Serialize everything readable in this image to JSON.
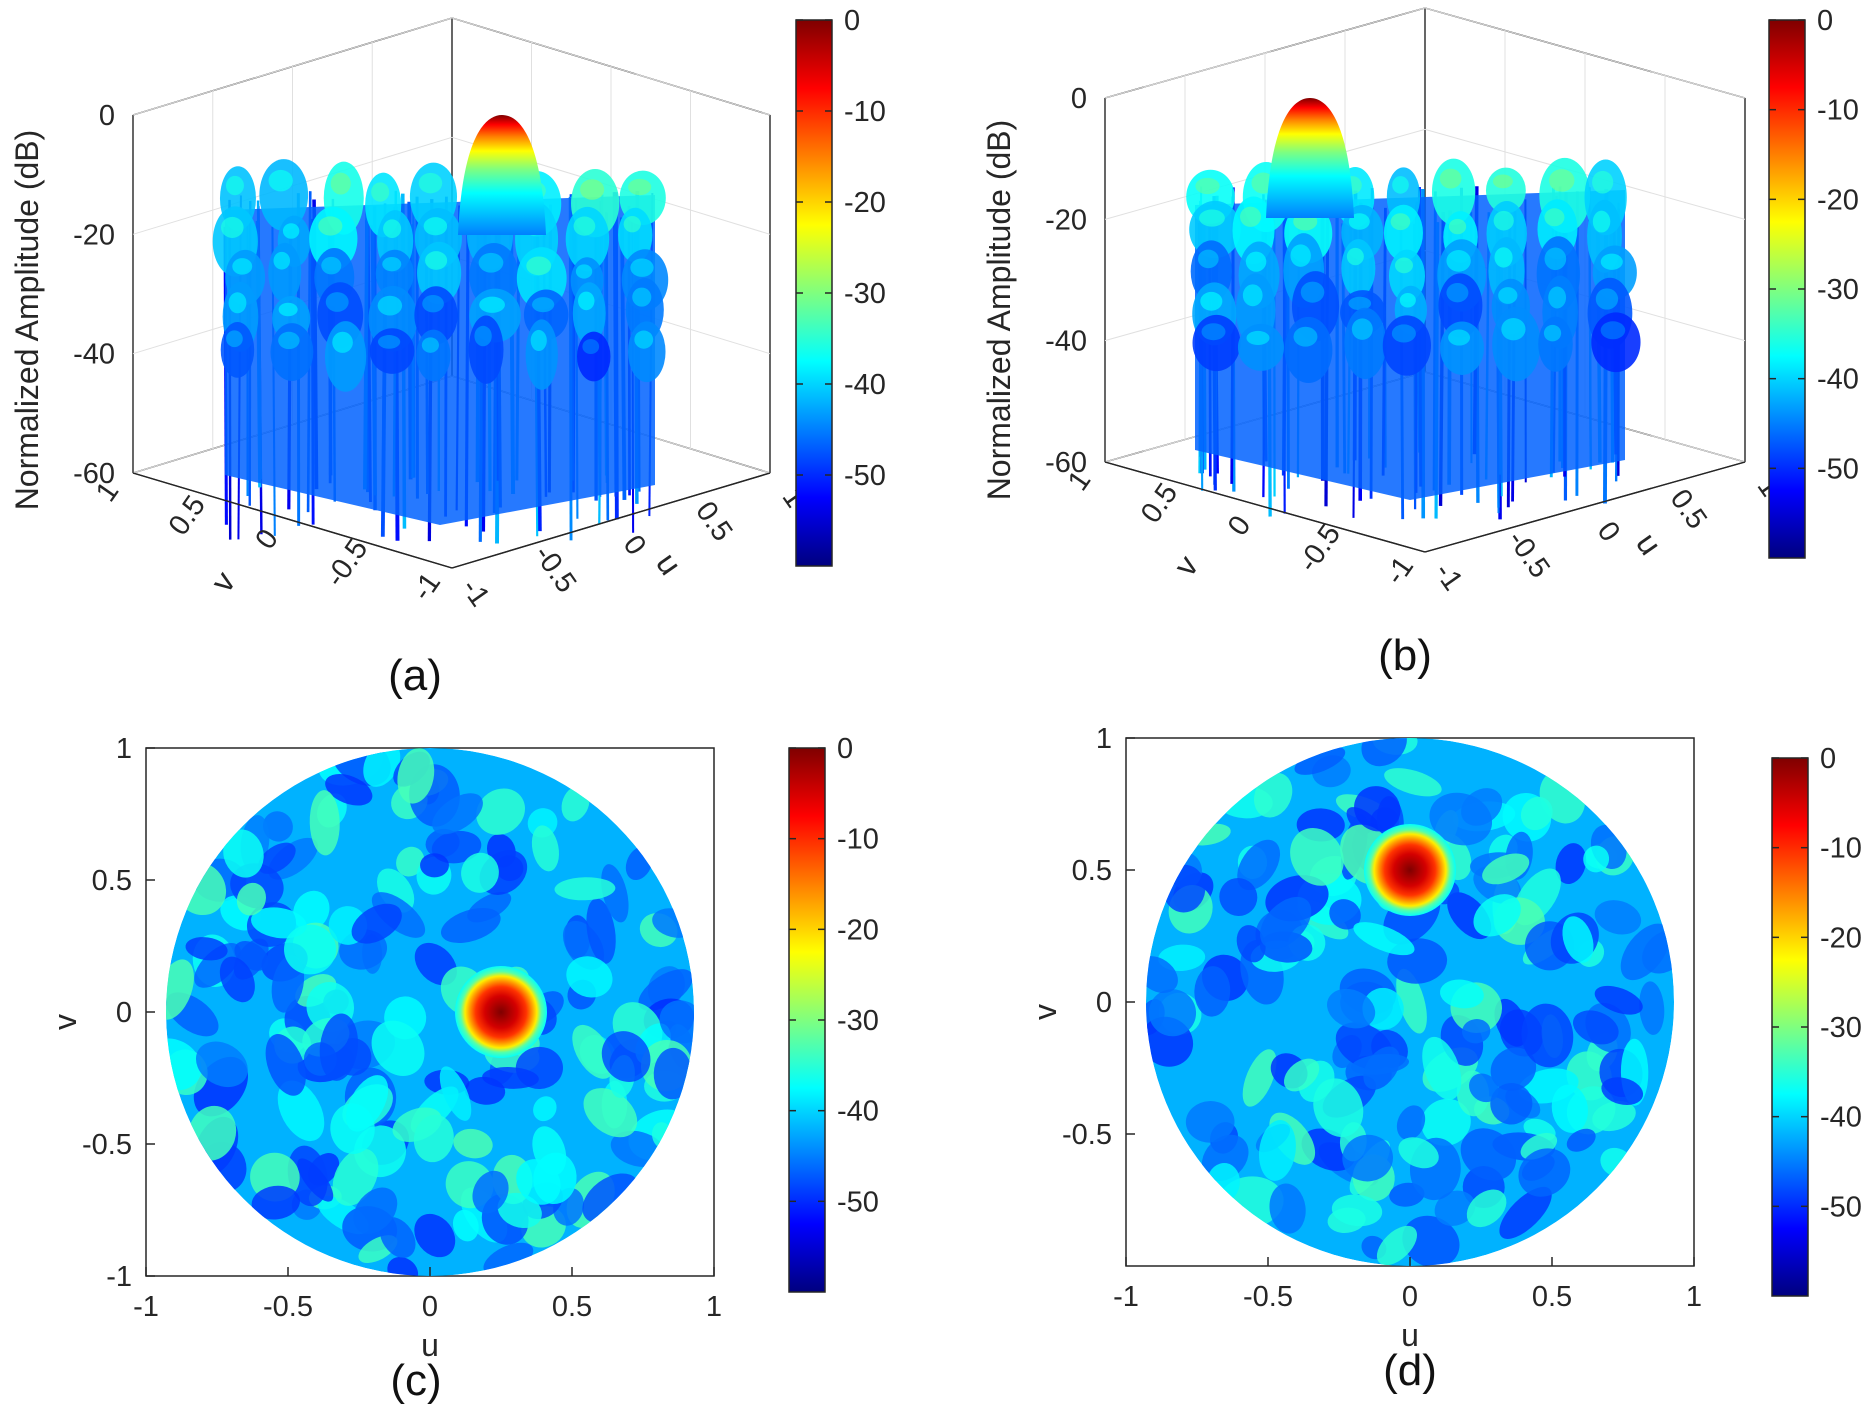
{
  "figure": {
    "panels": [
      {
        "id": "a",
        "label": "(a)"
      },
      {
        "id": "b",
        "label": "(b)"
      },
      {
        "id": "c",
        "label": "(c)"
      },
      {
        "id": "d",
        "label": "(d)"
      }
    ],
    "colormap": [
      "#00007f",
      "#0000ff",
      "#007fff",
      "#00ffff",
      "#7fff7f",
      "#ffff00",
      "#ff7f00",
      "#ff0000",
      "#7f0000"
    ]
  },
  "chart_data": [
    {
      "panel": "(a)",
      "type": "surface",
      "title": "",
      "zlabel": "Normalized Amplitude (dB)",
      "xlabel": "u",
      "ylabel": "v",
      "zlim": [
        -60,
        0
      ],
      "zticks": [
        "0",
        "-20",
        "-40",
        "-60"
      ],
      "uticks": [
        "-1",
        "-0.5",
        "0",
        "0.5",
        "1"
      ],
      "vticks": [
        "1",
        "0.5",
        "0",
        "-0.5",
        "-1"
      ],
      "main_beam": {
        "u": 0.25,
        "v": 0.0,
        "peak_db": 0
      },
      "sidelobe_level_db": -20,
      "colorbar": {
        "range": [
          -60,
          0
        ],
        "ticks": [
          "0",
          "-10",
          "-20",
          "-30",
          "-40",
          "-50"
        ]
      }
    },
    {
      "panel": "(b)",
      "type": "surface",
      "title": "",
      "zlabel": "Normalized Amplitude (dB)",
      "xlabel": "u",
      "ylabel": "v",
      "zlim": [
        -60,
        0
      ],
      "zticks": [
        "0",
        "-20",
        "-40",
        "-60"
      ],
      "uticks": [
        "-1",
        "-0.5",
        "0",
        "0.5",
        "1"
      ],
      "vticks": [
        "1",
        "0.5",
        "0",
        "-0.5",
        "-1"
      ],
      "main_beam": {
        "u": 0.0,
        "v": 0.5,
        "peak_db": 0
      },
      "sidelobe_level_db": -20,
      "colorbar": {
        "range": [
          -60,
          0
        ],
        "ticks": [
          "0",
          "-10",
          "-20",
          "-30",
          "-40",
          "-50"
        ]
      }
    },
    {
      "panel": "(c)",
      "type": "heatmap",
      "title": "",
      "xlabel": "u",
      "ylabel": "v",
      "xlim": [
        -1,
        1
      ],
      "ylim": [
        -1,
        1
      ],
      "xticks": [
        "-1",
        "-0.5",
        "0",
        "0.5",
        "1"
      ],
      "yticks": [
        "1",
        "0.5",
        "0",
        "-0.5",
        "-1"
      ],
      "main_beam": {
        "u": 0.25,
        "v": 0.0,
        "peak_db": 0
      },
      "colorbar": {
        "range": [
          -60,
          0
        ],
        "ticks": [
          "0",
          "-10",
          "-20",
          "-30",
          "-40",
          "-50"
        ]
      }
    },
    {
      "panel": "(d)",
      "type": "heatmap",
      "title": "",
      "xlabel": "u",
      "ylabel": "v",
      "xlim": [
        -1,
        1
      ],
      "ylim": [
        -1,
        1
      ],
      "xticks": [
        "-1",
        "-0.5",
        "0",
        "0.5",
        "1"
      ],
      "yticks": [
        "1",
        "0.5",
        "0",
        "-0.5"
      ],
      "main_beam": {
        "u": 0.0,
        "v": 0.5,
        "peak_db": 0
      },
      "colorbar": {
        "range": [
          -60,
          0
        ],
        "ticks": [
          "0",
          "-10",
          "-20",
          "-30",
          "-40",
          "-50"
        ]
      }
    }
  ]
}
